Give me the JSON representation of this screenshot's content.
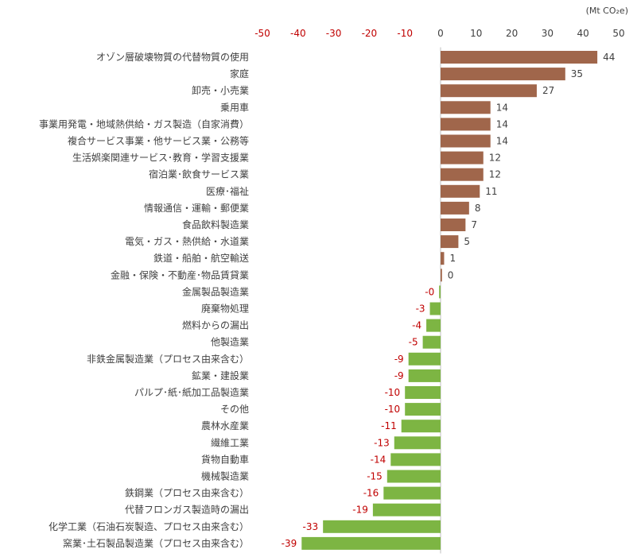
{
  "chart_data": {
    "type": "bar",
    "orientation": "horizontal",
    "unit": "(Mt CO₂e)",
    "xlim": [
      -50,
      50
    ],
    "xticks": [
      -50,
      -40,
      -30,
      -20,
      -10,
      0,
      10,
      20,
      30,
      40,
      50
    ],
    "grid": false,
    "legend": "none",
    "categories": [
      "オゾン層破壊物質の代替物質の使用",
      "家庭",
      "卸売・小売業",
      "乗用車",
      "事業用発電・地域熱供給・ガス製造（自家消費）",
      "複合サービス事業・他サービス業・公務等",
      "生活娯楽関連サービス･教育・学習支援業",
      "宿泊業･飲食サービス業",
      "医療･福祉",
      "情報通信・運輸・郵便業",
      "食品飲料製造業",
      "電気・ガス・熱供給・水道業",
      "鉄道・船舶・航空輸送",
      "金融・保険・不動産･物品賃貸業",
      "金属製品製造業",
      "廃棄物処理",
      "燃料からの漏出",
      "他製造業",
      "非鉄金属製造業（プロセス由来含む）",
      "鉱業・建設業",
      "パルプ･紙･紙加工品製造業",
      "その他",
      "農林水産業",
      "繊維工業",
      "貨物自動車",
      "機械製造業",
      "鉄鋼業（プロセス由来含む）",
      "代替フロンガス製造時の漏出",
      "化学工業（石油石炭製造、プロセス由来含む）",
      "窯業･土石製品製造業（プロセス由来含む）"
    ],
    "values": [
      44,
      35,
      27,
      14,
      14,
      14,
      12,
      12,
      11,
      8,
      7,
      5,
      1,
      0.4,
      -0.4,
      -3,
      -4,
      -5,
      -9,
      -9,
      -10,
      -10,
      -11,
      -13,
      -14,
      -15,
      -16,
      -19,
      -33,
      -39
    ],
    "data_labels": [
      "44",
      "35",
      "27",
      "14",
      "14",
      "14",
      "12",
      "12",
      "11",
      "8",
      "7",
      "5",
      "1",
      "0",
      "-0",
      "-3",
      "-4",
      "-5",
      "-9",
      "-9",
      "-10",
      "-10",
      "-11",
      "-13",
      "-14",
      "-15",
      "-16",
      "-19",
      "-33",
      "-39"
    ],
    "colors": {
      "positive_bar": "#A0664B",
      "negative_bar": "#7DB543",
      "positive_label": "#404040",
      "negative_label": "#C00000",
      "axis": "#BFBFBF"
    }
  }
}
